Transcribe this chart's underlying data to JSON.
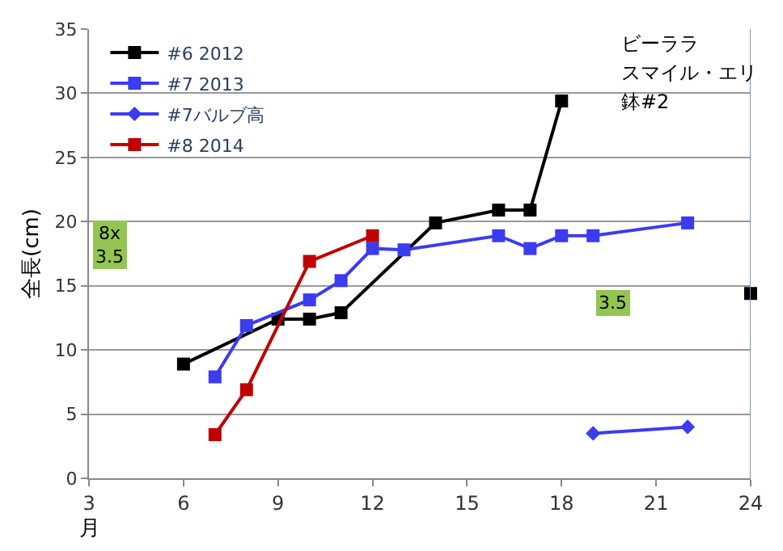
{
  "chart_data": {
    "type": "line",
    "xlabel": "月",
    "ylabel": "全長(cm)",
    "xlim": [
      3,
      24
    ],
    "xticks": [
      3,
      6,
      9,
      12,
      15,
      18,
      21,
      24
    ],
    "ylim": [
      0,
      35
    ],
    "yticks": [
      0,
      5,
      10,
      15,
      20,
      25,
      30,
      35
    ],
    "grid": "y",
    "legend": "top left",
    "marker": "square",
    "series": [
      {
        "name": "#6 2012",
        "color": "#000000",
        "x": [
          6,
          9,
          10,
          11,
          14,
          16,
          17,
          18,
          21,
          24
        ],
        "values": [
          8.9,
          12.4,
          12.4,
          12.9,
          19.9,
          20.9,
          20.9,
          29.4,
          null,
          14.4
        ]
      },
      {
        "name": "#7 2013",
        "color": "#3b3bf0",
        "x": [
          7,
          8,
          10,
          11,
          12,
          13,
          16,
          17,
          18,
          19,
          22
        ],
        "values": [
          7.9,
          11.9,
          13.9,
          15.4,
          17.9,
          17.8,
          18.9,
          17.9,
          18.9,
          18.9,
          19.9
        ]
      },
      {
        "name": "#7バルブ高",
        "color": "#3b3bf0",
        "marker": "diamond",
        "x": [
          19,
          22
        ],
        "values": [
          3.5,
          4.0
        ]
      },
      {
        "name": "#8 2014",
        "color": "#c00000",
        "x": [
          7,
          8,
          10,
          12
        ],
        "values": [
          3.4,
          6.9,
          16.9,
          18.9
        ]
      }
    ],
    "annotations": [
      "8x\n3.5",
      "3.5",
      "ビーララ",
      "スマイル・エリ",
      "鉢#2"
    ]
  }
}
